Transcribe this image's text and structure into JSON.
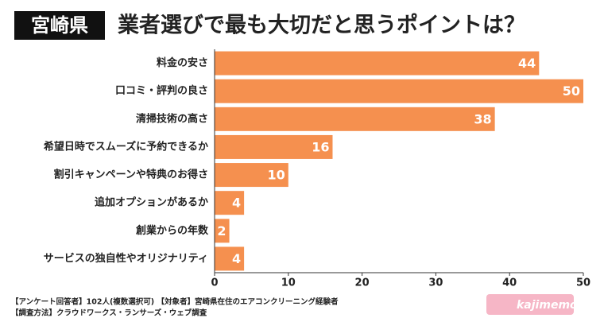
{
  "chart_data": {
    "type": "bar",
    "orientation": "horizontal",
    "region": "宮崎県",
    "title": "業者選びで最も大切だと思うポイントは？",
    "categories": [
      "料金の安さ",
      "口コミ・評判の良さ",
      "清掃技術の高さ",
      "希望日時でスムーズに予約できるか",
      "割引キャンペーンや特典のお得さ",
      "追加オプションがあるか",
      "創業からの年数",
      "サービスの独自性やオリジナリティ"
    ],
    "values": [
      44,
      50,
      38,
      16,
      10,
      4,
      2,
      4
    ],
    "color": "#f5904f",
    "xlim": [
      0,
      50
    ],
    "xticks": [
      0,
      10,
      20,
      30,
      40,
      50
    ],
    "grid": false,
    "notes": [
      "【アンケート回答者】102人(複数選択可) 【対象者】宮崎県在住のエアコンクリーニング経験者",
      "【調査方法】クラウドワークス・ランサーズ・ウェブ調査"
    ],
    "logo": "kajimemo"
  }
}
